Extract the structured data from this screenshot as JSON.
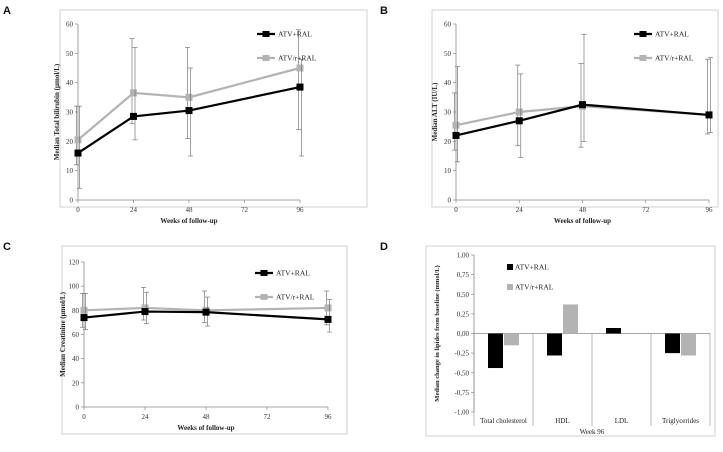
{
  "colors": {
    "series1": "#000000",
    "series2": "#b3b3b3",
    "axis": "#888888",
    "panel_border": "#d0d0d0",
    "error": "#777777"
  },
  "chart_data": [
    {
      "panel": "A",
      "type": "line",
      "xlabel": "Weeks of follow-up",
      "ylabel": "Median Total bilirubin (µmol/L)",
      "xlim": [
        0,
        96
      ],
      "ylim": [
        0,
        60
      ],
      "xticks": [
        "0",
        "24",
        "48",
        "72",
        "96"
      ],
      "yticks": [
        "0",
        "10",
        "20",
        "30",
        "40",
        "50",
        "60"
      ],
      "x": [
        0,
        24,
        48,
        96
      ],
      "series": [
        {
          "name": "ATV+RAL",
          "values": [
            16,
            28.5,
            30.5,
            38.5
          ],
          "err_low": [
            4,
            20.5,
            15,
            15
          ],
          "err_high": [
            32,
            52,
            45,
            48
          ]
        },
        {
          "name": "ATV/r+RAL",
          "values": [
            20.5,
            36.5,
            35,
            45
          ],
          "err_low": [
            12,
            26,
            21,
            24
          ],
          "err_high": [
            32,
            55,
            52,
            58
          ]
        }
      ]
    },
    {
      "panel": "B",
      "type": "line",
      "xlabel": "Weeks of follow-up",
      "ylabel": "Median ALT (IU/L)",
      "xlim": [
        0,
        96
      ],
      "ylim": [
        0,
        60
      ],
      "xticks": [
        "0",
        "24",
        "48",
        "72",
        "96"
      ],
      "yticks": [
        "0",
        "10",
        "20",
        "30",
        "40",
        "50",
        "60"
      ],
      "x": [
        0,
        24,
        48,
        96
      ],
      "series": [
        {
          "name": "ATV+RAL",
          "values": [
            22,
            27,
            32.5,
            29
          ],
          "err_low": [
            13,
            14.5,
            20,
            23
          ],
          "err_high": [
            45.5,
            43,
            56.5,
            48.5
          ]
        },
        {
          "name": "ATV/r+RAL",
          "values": [
            25.5,
            30,
            32,
            29
          ],
          "err_low": [
            17,
            18.5,
            18,
            22.5
          ],
          "err_high": [
            36.5,
            46,
            46.5,
            48
          ]
        }
      ]
    },
    {
      "panel": "C",
      "type": "line",
      "xlabel": "Weeks of follow-up",
      "ylabel": "Median Creatinine (µmol/L)",
      "xlim": [
        0,
        96
      ],
      "ylim": [
        0,
        120
      ],
      "xticks": [
        "0",
        "24",
        "48",
        "72",
        "96"
      ],
      "yticks": [
        "0",
        "20",
        "40",
        "60",
        "80",
        "100",
        "120"
      ],
      "x": [
        0,
        24,
        48,
        96
      ],
      "series": [
        {
          "name": "ATV+RAL",
          "values": [
            74,
            79,
            78.5,
            72.5
          ],
          "err_low": [
            64,
            69,
            67,
            62
          ],
          "err_high": [
            94,
            95,
            91,
            89
          ]
        },
        {
          "name": "ATV/r+RAL",
          "values": [
            80,
            82,
            80,
            82
          ],
          "err_low": [
            66,
            72,
            70,
            68
          ],
          "err_high": [
            94,
            99,
            96,
            96
          ]
        }
      ]
    },
    {
      "panel": "D",
      "type": "bar",
      "title": "",
      "xlabel": "Week 96",
      "ylabel": "Median change in lipides from baseline (mmol/L)",
      "ylim": [
        -1,
        1
      ],
      "yticks": [
        "1,00",
        "0,75",
        "0,50",
        "0,25",
        "0,00",
        "-0,25",
        "-0,50",
        "-0,75",
        "-1,00"
      ],
      "categories": [
        "Total cholesterol",
        "HDL",
        "LDL",
        "Triglycerides"
      ],
      "series": [
        {
          "name": "ATV+RAL",
          "values": [
            -0.44,
            -0.28,
            0.07,
            -0.25
          ]
        },
        {
          "name": "ATV/r+RAL",
          "values": [
            -0.15,
            0.37,
            0,
            -0.28
          ]
        }
      ]
    }
  ]
}
